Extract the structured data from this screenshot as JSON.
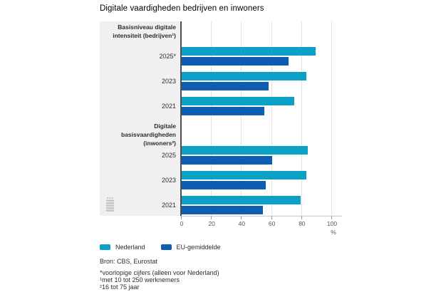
{
  "chart_data": {
    "type": "bar",
    "orientation": "horizontal",
    "title": "Digitale vaardigheden bedrijven en inwoners",
    "unit": "%",
    "xlim": [
      0,
      100
    ],
    "xticks": [
      0,
      20,
      40,
      60,
      80,
      100
    ],
    "grid": true,
    "legend_position": "bottom",
    "legend": [
      {
        "name": "Nederland",
        "color": "#0ba1c7"
      },
      {
        "name": "EU-gemiddelde",
        "color": "#0d5db3"
      }
    ],
    "groups": [
      {
        "label": "Basisniveau digitale intensiteit (bedrijven¹)",
        "label_lines": [
          "Basisniveau digitale",
          "intensiteit (bedrijven¹)"
        ],
        "rows": [
          {
            "year": "2025*",
            "nederland": 89,
            "eu": 71
          },
          {
            "year": "2023",
            "nederland": 83,
            "eu": 58
          },
          {
            "year": "2021",
            "nederland": 75,
            "eu": 55
          }
        ]
      },
      {
        "label": "Digitale basisvaardigheden (inwoners²)",
        "label_lines": [
          "Digitale basisvaardigheden",
          "(inwoners²)"
        ],
        "rows": [
          {
            "year": "2025",
            "nederland": 84,
            "eu": 60
          },
          {
            "year": "2023",
            "nederland": 83,
            "eu": 56
          },
          {
            "year": "2021",
            "nederland": 79,
            "eu": 54
          }
        ]
      }
    ]
  },
  "source": "Bron: CBS, Eurostat",
  "footnotes": [
    "*voorlopige cijfers (alleen voor Nederland)",
    "¹met 10 tot 250 werknemers",
    "²16 tot 75 jaar"
  ]
}
